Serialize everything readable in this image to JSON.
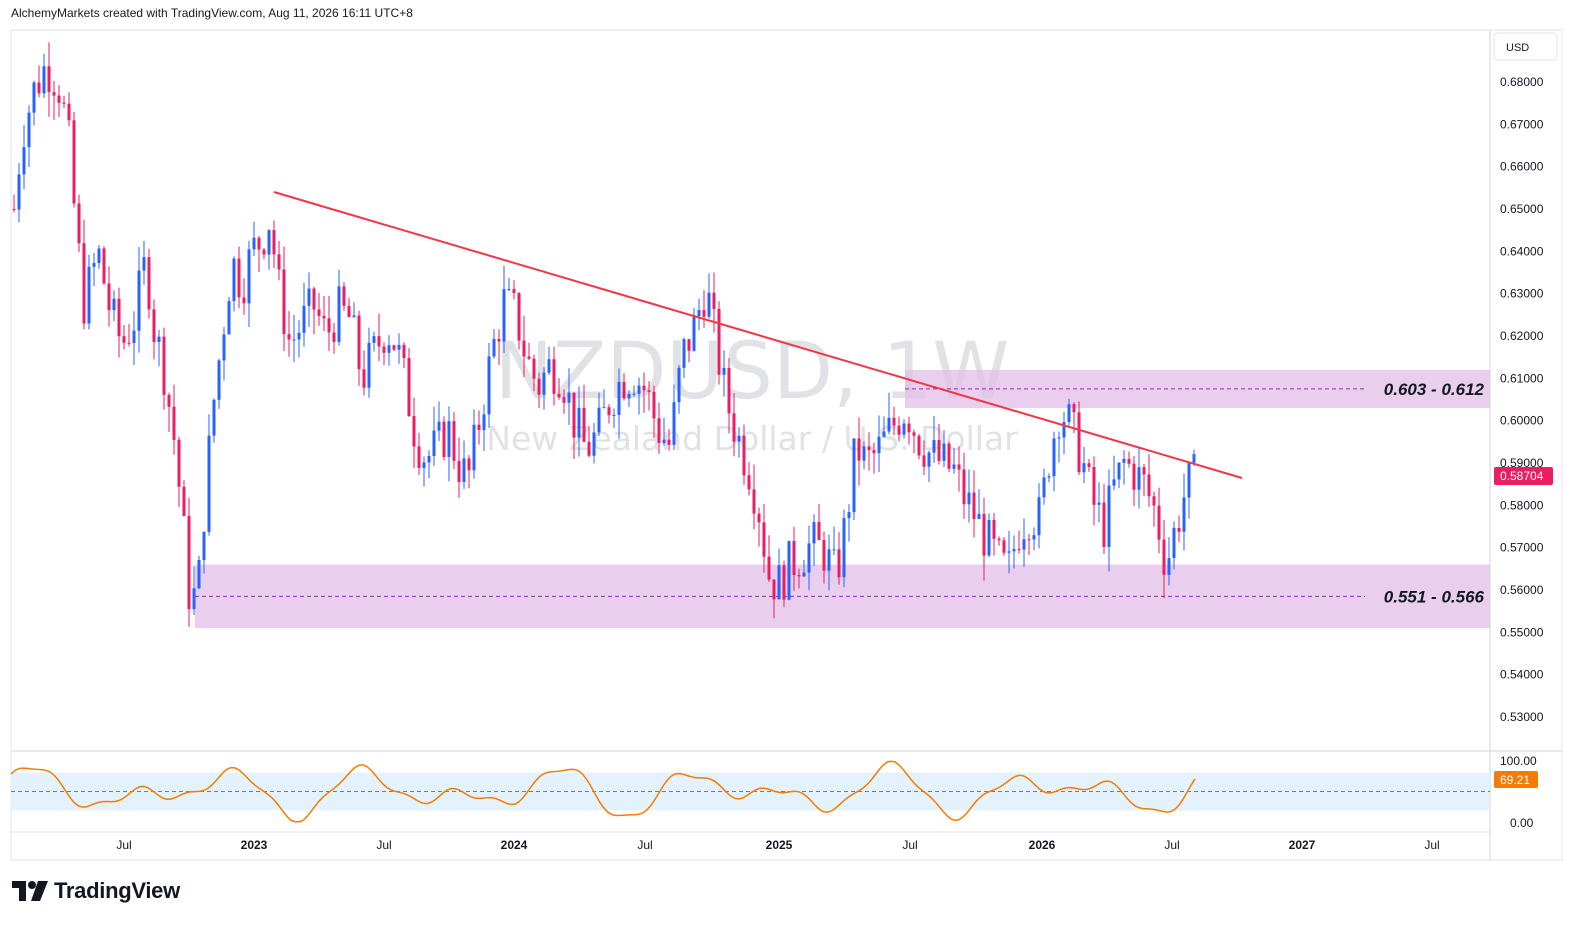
{
  "header": {
    "text": "AlchemyMarkets created with TradingView.com, Aug 11, 2026 16:11 UTC+8"
  },
  "brand": {
    "name": "TradingView",
    "icon": "tradingview-logo-icon"
  },
  "watermark": {
    "symbol": "NZDUSD, 1W",
    "description": "New Zealand Dollar / U.S. Dollar"
  },
  "chart_data": {
    "type": "candlestick",
    "symbol": "NZDUSD",
    "interval": "1W",
    "currency_label": "USD",
    "last_price": "0.58704",
    "y_ticks": [
      "0.68000",
      "0.67000",
      "0.66000",
      "0.65000",
      "0.64000",
      "0.63000",
      "0.62000",
      "0.61000",
      "0.60000",
      "0.59000",
      "0.58000",
      "0.57000",
      "0.56000",
      "0.55000",
      "0.54000",
      "0.53000"
    ],
    "x_ticks": [
      "Jul",
      "2023",
      "Jul",
      "2024",
      "Jul",
      "2025",
      "Jul",
      "2026",
      "Jul",
      "2027",
      "Jul"
    ],
    "zones": [
      {
        "label": "0.603 - 0.612",
        "low": 0.603,
        "high": 0.612,
        "midline": 0.6075
      },
      {
        "label": "0.551 - 0.566",
        "low": 0.551,
        "high": 0.566,
        "midline": 0.5585
      }
    ],
    "trendline": {
      "from": {
        "date": "2022-12-05",
        "value": 0.6545
      },
      "to": {
        "date": "2026-09-07",
        "value": 0.5865
      }
    },
    "oscillator": {
      "last": "69.21",
      "upper_label": "100.00",
      "lower_label": "0.00",
      "band": [
        20,
        80
      ]
    },
    "colors": {
      "up": "#2962ff",
      "down": "#e91e63",
      "trendline": "#f23645",
      "zone": "#e1bee7",
      "oscillator": "#f57c00",
      "band": "#e3f2fd"
    }
  }
}
